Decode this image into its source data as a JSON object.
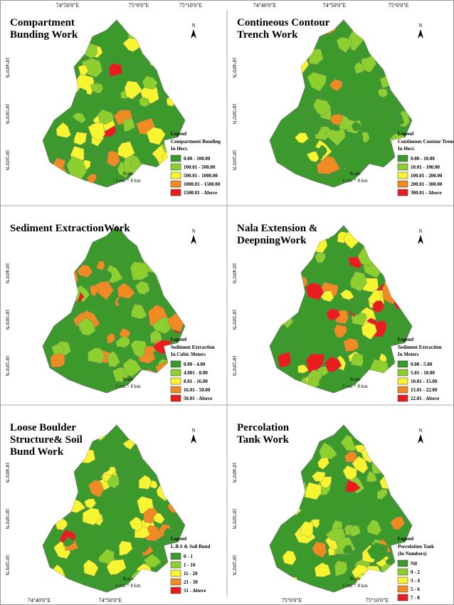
{
  "top_coords": [
    "74°50'0\"E",
    "75°0'0\"E",
    "75°10'0\"E",
    "74°40'0\"E",
    "74°50'0\"E",
    "75°0'0\"E"
  ],
  "bottom_coords": [
    "74°40'0\"E",
    "74°50'0\"E",
    "75°0'0\"E",
    "75°10'0\"E"
  ],
  "lat_labels": [
    "18°40'0\"N",
    "18°30'0\"N",
    "18°20'0\"N"
  ],
  "colors": [
    "#3c9a2c",
    "#8ccf2e",
    "#f7f531",
    "#f08a22",
    "#e81e1e"
  ],
  "panels": [
    {
      "title": [
        "Compartment",
        "Bunding Work"
      ],
      "legend_title": "Legend",
      "legend_sub": [
        "Compartment Bunding",
        "In Hect."
      ],
      "classes": [
        "0.00 - 100.00",
        "100.01 - 500.00",
        "500.01 - 1000.00",
        "1000.01 - 1500.00",
        "1500.01 - Above"
      ],
      "scale_title": "Scale",
      "scale": "1 cm = 8 km",
      "north": "N"
    },
    {
      "title": [
        "Contineous Contour",
        "Trench Work"
      ],
      "legend_title": "Legend",
      "legend_sub": [
        "Contineous Contour Trench",
        "In Hect."
      ],
      "classes": [
        "0.00 - 10.00",
        "10.01 - 100.00",
        "100.01 - 200.00",
        "200.01 - 300.00",
        "300.01 - Above"
      ],
      "scale_title": "Scale",
      "scale": "1 cm = 8 km",
      "north": "N"
    },
    {
      "title": [
        "Sediment ExtractionWork"
      ],
      "legend_title": "Legend",
      "legend_sub": [
        "Sediment Extraction",
        "In Cubic Meters"
      ],
      "classes": [
        "0.00 - 4.00",
        "4.001 - 8.00",
        "8.01 - 16.00",
        "16.01 - 50.00",
        "50.01 - Above"
      ],
      "scale_title": "Scale",
      "scale": "1 cm = 8 km",
      "north": "N"
    },
    {
      "title": [
        "Nala Extension &",
        "DeepningWork"
      ],
      "legend_title": "Legend",
      "legend_sub": [
        "Sediment Extraction",
        "In Meters"
      ],
      "classes": [
        "0.00 - 5.00",
        "5.01 - 10.00",
        "10.01 - 15.00",
        "15.01 - 22.00",
        "22.01 - Above"
      ],
      "scale_title": "Scale",
      "scale": "1 cm = 8 km",
      "north": "N"
    },
    {
      "title": [
        "Loose Boulder",
        "Structure& Soil",
        "Bund Work"
      ],
      "legend_title": "Legend",
      "legend_sub": [
        "L.B.S & Soil Bund"
      ],
      "classes": [
        "0 - 1",
        "1 - 10",
        "11 - 20",
        "21 - 30",
        "31 - Above"
      ],
      "scale_title": "Scale",
      "scale": "1 cm = 8 km",
      "north": "N"
    },
    {
      "title": [
        "Percolation",
        "Tank Work"
      ],
      "legend_title": "Legend",
      "legend_sub": [
        "Percolation Tank",
        "(In Numbers)"
      ],
      "classes": [
        "Nil",
        "0 - 2",
        "3 - 4",
        "5 - 6",
        "7 - 8"
      ],
      "scale_title": "Scale",
      "scale": "1 cm = 8 km",
      "north": "N"
    }
  ]
}
